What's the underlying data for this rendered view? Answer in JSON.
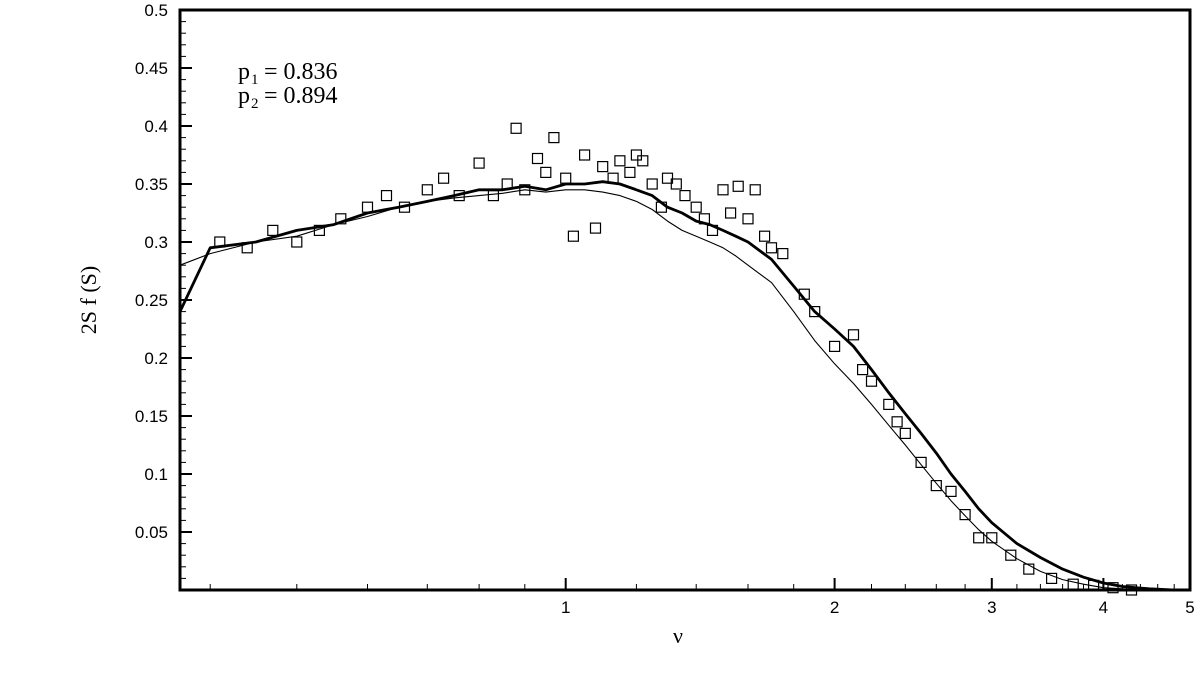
{
  "chart_data": {
    "type": "line",
    "title": "",
    "xlabel": "ν",
    "ylabel": "2S f (S)",
    "xscale": "log",
    "xlim": [
      0.37,
      5
    ],
    "ylim": [
      0,
      0.5
    ],
    "x_ticks": [
      1,
      2,
      3,
      4,
      5
    ],
    "y_ticks": [
      0.05,
      0.1,
      0.15,
      0.2,
      0.25,
      0.3,
      0.35,
      0.4,
      0.45,
      0.5
    ],
    "grid": false,
    "annotations": {
      "p1": {
        "symbol": "p",
        "subscript": "1",
        "text": "= 0.836"
      },
      "p2": {
        "symbol": "p",
        "subscript": "2",
        "text": "=  0.894"
      }
    },
    "series": [
      {
        "style": "thick-line",
        "x": [
          0.37,
          0.4,
          0.45,
          0.5,
          0.55,
          0.6,
          0.65,
          0.7,
          0.75,
          0.8,
          0.85,
          0.9,
          0.95,
          1.0,
          1.05,
          1.1,
          1.15,
          1.2,
          1.25,
          1.3,
          1.35,
          1.4,
          1.45,
          1.5,
          1.55,
          1.6,
          1.7,
          1.8,
          1.9,
          2.0,
          2.1,
          2.2,
          2.3,
          2.4,
          2.5,
          2.6,
          2.7,
          2.8,
          2.9,
          3.0,
          3.2,
          3.4,
          3.6,
          3.8,
          4.0,
          4.2,
          4.5,
          4.8,
          5.0
        ],
        "y": [
          0.24,
          0.295,
          0.3,
          0.31,
          0.315,
          0.325,
          0.33,
          0.335,
          0.34,
          0.345,
          0.345,
          0.348,
          0.345,
          0.35,
          0.35,
          0.352,
          0.35,
          0.345,
          0.34,
          0.33,
          0.325,
          0.318,
          0.315,
          0.31,
          0.305,
          0.3,
          0.285,
          0.262,
          0.24,
          0.225,
          0.21,
          0.19,
          0.17,
          0.152,
          0.135,
          0.118,
          0.1,
          0.085,
          0.07,
          0.058,
          0.04,
          0.028,
          0.018,
          0.011,
          0.006,
          0.003,
          0.001,
          0.0,
          0.0
        ]
      },
      {
        "style": "thin-line",
        "x": [
          0.37,
          0.4,
          0.45,
          0.5,
          0.55,
          0.6,
          0.65,
          0.7,
          0.75,
          0.8,
          0.85,
          0.9,
          0.95,
          1.0,
          1.05,
          1.1,
          1.15,
          1.2,
          1.25,
          1.3,
          1.35,
          1.4,
          1.45,
          1.5,
          1.55,
          1.6,
          1.7,
          1.8,
          1.9,
          2.0,
          2.1,
          2.2,
          2.3,
          2.4,
          2.5,
          2.6,
          2.7,
          2.8,
          2.9,
          3.0,
          3.2,
          3.4,
          3.6,
          3.8,
          4.0,
          4.2,
          4.5
        ],
        "y": [
          0.28,
          0.29,
          0.3,
          0.305,
          0.315,
          0.322,
          0.33,
          0.335,
          0.338,
          0.34,
          0.342,
          0.345,
          0.343,
          0.345,
          0.345,
          0.343,
          0.34,
          0.335,
          0.328,
          0.318,
          0.31,
          0.305,
          0.3,
          0.295,
          0.288,
          0.28,
          0.265,
          0.24,
          0.215,
          0.195,
          0.178,
          0.16,
          0.142,
          0.125,
          0.108,
          0.092,
          0.077,
          0.064,
          0.052,
          0.042,
          0.027,
          0.016,
          0.009,
          0.005,
          0.002,
          0.001,
          0.0
        ]
      },
      {
        "style": "square-markers",
        "x": [
          0.41,
          0.44,
          0.47,
          0.5,
          0.53,
          0.56,
          0.6,
          0.63,
          0.66,
          0.7,
          0.73,
          0.76,
          0.8,
          0.83,
          0.86,
          0.88,
          0.9,
          0.93,
          0.95,
          0.97,
          1.0,
          1.02,
          1.05,
          1.08,
          1.1,
          1.13,
          1.15,
          1.18,
          1.2,
          1.22,
          1.25,
          1.28,
          1.3,
          1.33,
          1.36,
          1.4,
          1.43,
          1.46,
          1.5,
          1.53,
          1.56,
          1.6,
          1.63,
          1.67,
          1.7,
          1.75,
          1.85,
          1.9,
          2.0,
          2.1,
          2.15,
          2.2,
          2.3,
          2.35,
          2.4,
          2.5,
          2.6,
          2.7,
          2.8,
          2.9,
          3.0,
          3.15,
          3.3,
          3.5,
          3.7,
          3.9,
          4.1,
          4.3
        ],
        "y": [
          0.3,
          0.295,
          0.31,
          0.3,
          0.31,
          0.32,
          0.33,
          0.34,
          0.33,
          0.345,
          0.355,
          0.34,
          0.368,
          0.34,
          0.35,
          0.398,
          0.345,
          0.372,
          0.36,
          0.39,
          0.355,
          0.305,
          0.375,
          0.312,
          0.365,
          0.355,
          0.37,
          0.36,
          0.375,
          0.37,
          0.35,
          0.33,
          0.355,
          0.35,
          0.34,
          0.33,
          0.32,
          0.31,
          0.345,
          0.325,
          0.348,
          0.32,
          0.345,
          0.305,
          0.295,
          0.29,
          0.255,
          0.24,
          0.21,
          0.22,
          0.19,
          0.18,
          0.16,
          0.145,
          0.135,
          0.11,
          0.09,
          0.085,
          0.065,
          0.045,
          0.045,
          0.03,
          0.018,
          0.01,
          0.005,
          0.004,
          0.002,
          0.0
        ]
      }
    ]
  }
}
